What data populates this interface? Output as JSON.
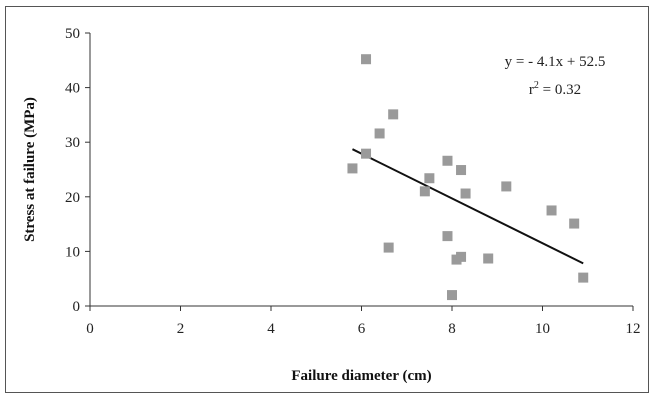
{
  "chart_data": {
    "type": "scatter",
    "title": "",
    "xlabel": "Failure diameter (cm)",
    "ylabel": "Stress at failure (MPa)",
    "xlim": [
      0,
      12
    ],
    "ylim": [
      0,
      50
    ],
    "x_ticks": [
      0,
      2,
      4,
      6,
      8,
      10,
      12
    ],
    "y_ticks": [
      0,
      10,
      20,
      30,
      40,
      50
    ],
    "grid": false,
    "legend": "none",
    "marker_color": "#9a9a9a",
    "line_color": "#111111",
    "series": [
      {
        "points": [
          {
            "x": 5.8,
            "y": 25.2
          },
          {
            "x": 6.1,
            "y": 45.2
          },
          {
            "x": 6.1,
            "y": 27.9
          },
          {
            "x": 6.4,
            "y": 31.6
          },
          {
            "x": 6.6,
            "y": 10.7
          },
          {
            "x": 6.7,
            "y": 35.1
          },
          {
            "x": 7.4,
            "y": 21.0
          },
          {
            "x": 7.5,
            "y": 23.4
          },
          {
            "x": 7.9,
            "y": 26.6
          },
          {
            "x": 7.9,
            "y": 12.8
          },
          {
            "x": 8.0,
            "y": 2.0
          },
          {
            "x": 8.1,
            "y": 8.5
          },
          {
            "x": 8.2,
            "y": 24.9
          },
          {
            "x": 8.2,
            "y": 9.0
          },
          {
            "x": 8.3,
            "y": 20.6
          },
          {
            "x": 8.8,
            "y": 8.7
          },
          {
            "x": 9.2,
            "y": 21.9
          },
          {
            "x": 10.2,
            "y": 17.5
          },
          {
            "x": 10.7,
            "y": 15.1
          },
          {
            "x": 10.9,
            "y": 5.2
          }
        ]
      }
    ],
    "trendline": {
      "slope": -4.1,
      "intercept": 52.5,
      "x_range": [
        5.8,
        10.9
      ]
    },
    "annotations": {
      "equation": "y = - 4.1x + 52.5",
      "r_squared_prefix": "r",
      "r_squared_exponent": "2",
      "r_squared_suffix": " = 0.32"
    }
  }
}
